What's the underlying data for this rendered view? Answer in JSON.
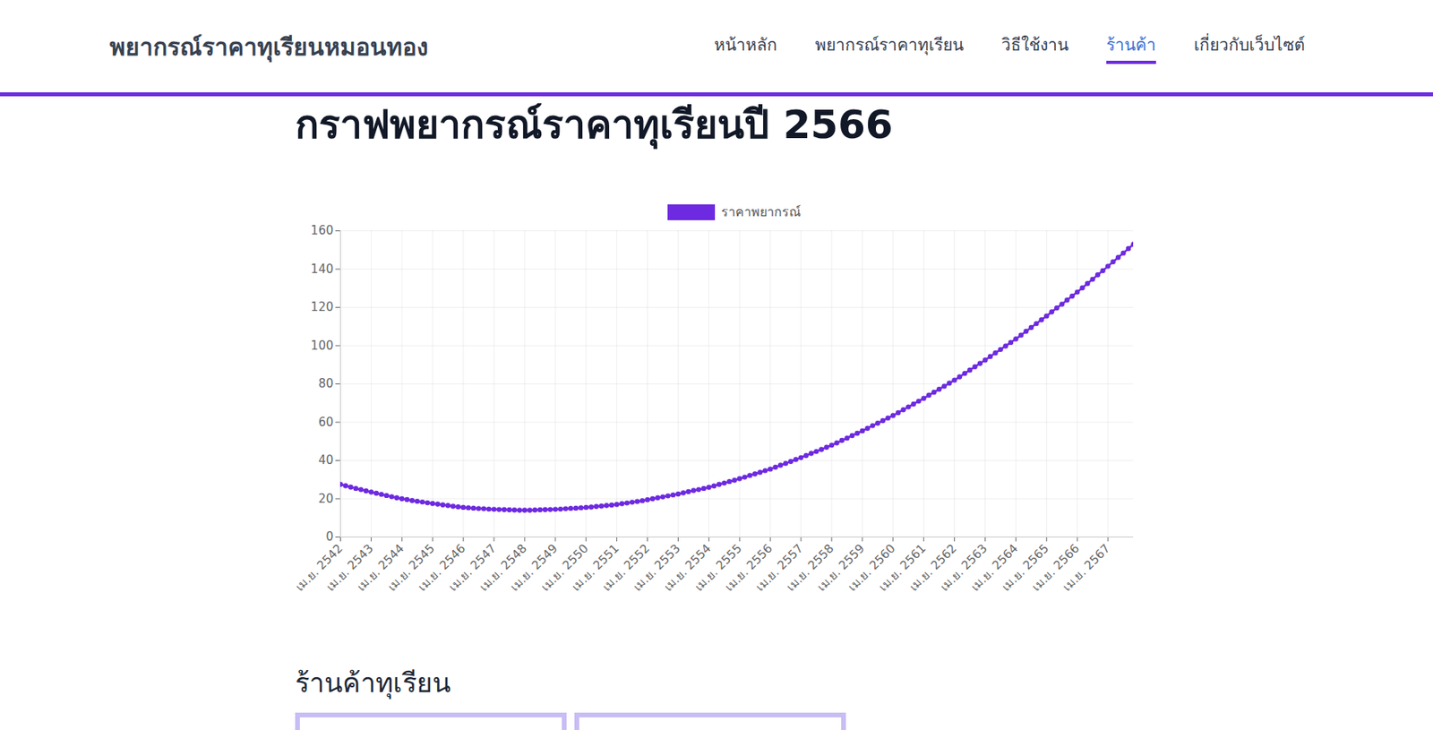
{
  "page": {
    "site_title": "พยากรณ์ราคาทุเรียนหมอนทอง",
    "nav": [
      "หน้าหลัก",
      "พยากรณ์ราคาทุเรียน",
      "วิธีใช้งาน",
      "ร้านค้า",
      "เกี่ยวกับเว็บไซต์"
    ],
    "active_nav": "ร้านค้า",
    "section_title": "ร้านค้าทุเรียน"
  },
  "chart_data": {
    "type": "line",
    "title": "กราฟพยากรณ์ราคาทุเรียนปี 2566",
    "categories": [
      "เม.ย. 2542",
      null,
      null,
      null,
      null,
      null,
      "เม.ย. 2543",
      null,
      null,
      null,
      null,
      null,
      "เม.ย. 2544",
      null,
      null,
      null,
      null,
      null,
      "เม.ย. 2545",
      null,
      null,
      null,
      null,
      null,
      "เม.ย. 2546",
      null,
      null,
      null,
      null,
      null,
      "เม.ย. 2547",
      null,
      null,
      null,
      null,
      null,
      "เม.ย. 2548",
      null,
      null,
      null,
      null,
      null,
      "เม.ย. 2549",
      null,
      null,
      null,
      null,
      null,
      "เม.ย. 2550",
      null,
      null,
      null,
      null,
      null,
      "เม.ย. 2551",
      null,
      null,
      null,
      null,
      null,
      "เม.ย. 2552",
      null,
      null,
      null,
      null,
      null,
      "เม.ย. 2553",
      null,
      null,
      null,
      null,
      null,
      "เม.ย. 2554",
      null,
      null,
      null,
      null,
      null,
      "เม.ย. 2555",
      null,
      null,
      null,
      null,
      null,
      "เม.ย. 2556",
      null,
      null,
      null,
      null,
      null,
      "เม.ย. 2557",
      null,
      null,
      null,
      null,
      null,
      "เม.ย. 2558",
      null,
      null,
      null,
      null,
      null,
      "เม.ย. 2559",
      null,
      null,
      null,
      null,
      null,
      "เม.ย. 2560",
      null,
      null,
      null,
      null,
      null,
      "เม.ย. 2561",
      null,
      null,
      null,
      null,
      null,
      "เม.ย. 2562",
      null,
      null,
      null,
      null,
      null,
      "เม.ย. 2563",
      null,
      null,
      null,
      null,
      null,
      "เม.ย. 2564",
      null,
      null,
      null,
      null,
      null,
      "เม.ย. 2565",
      null,
      null,
      null,
      null,
      null,
      "เม.ย. 2566",
      null,
      null,
      null,
      null,
      null,
      "เม.ย. 2567",
      null,
      null,
      null,
      null,
      null
    ],
    "series": [
      {
        "name": "ราคาพยากรณ์",
        "color": "#6d2ae0",
        "marker": "circle",
        "line_style": "solid",
        "values": [
          27.5,
          26.8,
          26.1,
          25.4,
          24.8,
          24.1,
          23.5,
          22.9,
          22.3,
          21.7,
          21.1,
          20.5,
          20.0,
          19.6,
          19.1,
          18.7,
          18.3,
          17.9,
          17.5,
          17.2,
          16.8,
          16.5,
          16.1,
          15.8,
          15.5,
          15.3,
          15.1,
          14.9,
          14.8,
          14.6,
          14.5,
          14.4,
          14.3,
          14.2,
          14.1,
          14.0,
          14.0,
          14.0,
          14.1,
          14.2,
          14.3,
          14.4,
          14.5,
          14.6,
          14.8,
          15.0,
          15.1,
          15.3,
          15.5,
          15.7,
          16.0,
          16.2,
          16.5,
          16.7,
          17.0,
          17.4,
          17.8,
          18.2,
          18.6,
          19.0,
          19.5,
          20.0,
          20.5,
          21.0,
          21.5,
          22.0,
          22.5,
          23.1,
          23.7,
          24.3,
          24.8,
          25.4,
          26.0,
          26.7,
          27.5,
          28.2,
          29.0,
          29.7,
          30.5,
          31.3,
          32.2,
          33.0,
          33.8,
          34.7,
          35.5,
          36.5,
          37.5,
          38.5,
          39.5,
          40.5,
          41.5,
          42.6,
          43.7,
          44.7,
          45.8,
          46.9,
          48.0,
          49.2,
          50.5,
          51.7,
          53.0,
          54.2,
          55.5,
          56.8,
          58.2,
          59.5,
          60.8,
          62.2,
          63.5,
          65.0,
          66.5,
          68.0,
          69.5,
          71.0,
          72.5,
          74.1,
          75.7,
          77.2,
          78.8,
          80.4,
          82.0,
          83.7,
          85.5,
          87.2,
          89.0,
          90.7,
          92.5,
          94.3,
          96.2,
          98.0,
          99.8,
          101.7,
          103.5,
          105.5,
          107.5,
          109.5,
          111.5,
          113.5,
          115.5,
          117.6,
          119.7,
          121.7,
          123.8,
          125.9,
          128.0,
          130.2,
          132.5,
          134.7,
          137.0,
          139.2,
          141.5,
          143.8,
          146.1,
          148.4,
          150.7,
          153.0
        ]
      }
    ],
    "ylim": [
      0,
      160
    ],
    "yticks": [
      0,
      20,
      40,
      60,
      80,
      100,
      120,
      140,
      160
    ],
    "grid": true,
    "legend": "top"
  }
}
